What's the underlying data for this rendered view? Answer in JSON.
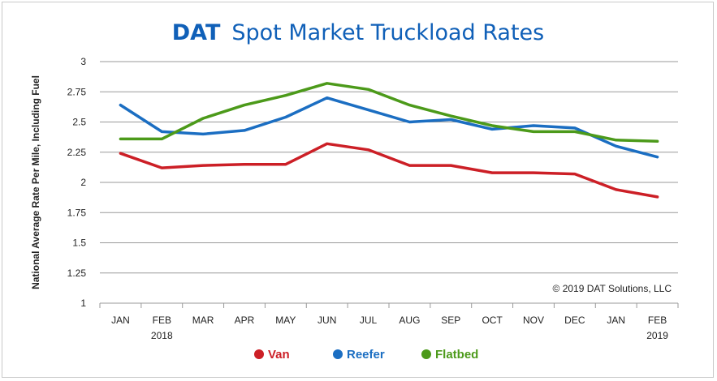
{
  "chart_data": {
    "type": "line",
    "title_brand": "DAT",
    "title_rest": "Spot Market Truckload Rates",
    "ylabel": "National Average Rate Per Mile, Including Fuel",
    "xlabel": "",
    "ylim": [
      1,
      3
    ],
    "yticks": [
      "1",
      "1.25",
      "1.5",
      "1.75",
      "2",
      "2.25",
      "2.5",
      "2.75",
      "3"
    ],
    "categories": [
      "JAN",
      "FEB",
      "MAR",
      "APR",
      "MAY",
      "JUN",
      "JUL",
      "AUG",
      "SEP",
      "OCT",
      "NOV",
      "DEC",
      "JAN",
      "FEB"
    ],
    "category_sublabels": [
      "",
      "2018",
      "",
      "",
      "",
      "",
      "",
      "",
      "",
      "",
      "",
      "",
      "",
      "2019"
    ],
    "grid": "horizontal",
    "legend_position": "bottom",
    "copyright": "© 2019 DAT Solutions, LLC",
    "series": [
      {
        "name": "Van",
        "color": "#cc1f26",
        "values": [
          2.24,
          2.12,
          2.14,
          2.15,
          2.15,
          2.32,
          2.27,
          2.14,
          2.14,
          2.08,
          2.08,
          2.07,
          1.94,
          1.88
        ]
      },
      {
        "name": "Reefer",
        "color": "#1b6ec2",
        "values": [
          2.64,
          2.42,
          2.4,
          2.43,
          2.54,
          2.7,
          2.6,
          2.5,
          2.52,
          2.44,
          2.47,
          2.45,
          2.3,
          2.21
        ]
      },
      {
        "name": "Flatbed",
        "color": "#4c9a1a",
        "values": [
          2.36,
          2.36,
          2.53,
          2.64,
          2.72,
          2.82,
          2.77,
          2.64,
          2.55,
          2.47,
          2.42,
          2.42,
          2.35,
          2.34
        ]
      }
    ]
  },
  "colors": {
    "title": "#1060b8",
    "grid": "#999999"
  }
}
